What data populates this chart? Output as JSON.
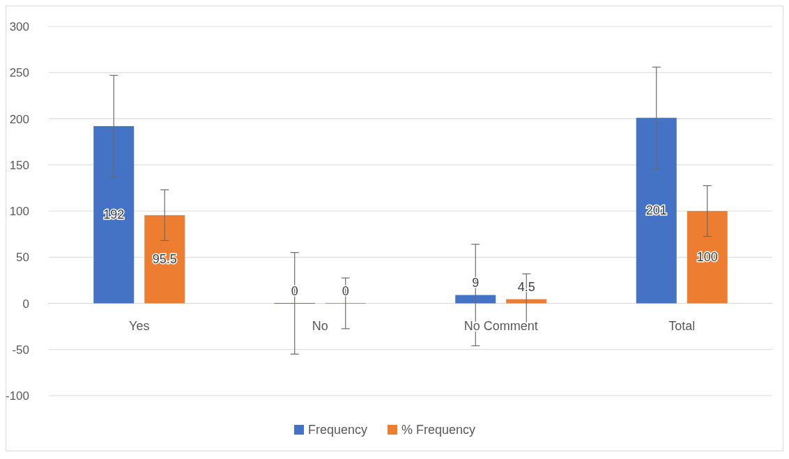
{
  "chart_data": {
    "type": "bar",
    "categories": [
      "Yes",
      "No",
      "No Comment",
      "Total"
    ],
    "series": [
      {
        "name": "Frequency",
        "color": "#4472c4",
        "values": [
          192,
          0,
          9,
          201
        ],
        "errors": [
          55,
          55,
          55,
          55
        ]
      },
      {
        "name": "% Frequency",
        "color": "#ed7d31",
        "values": [
          95.5,
          0,
          4.5,
          100
        ],
        "errors": [
          27.5,
          27.5,
          27.5,
          27.5
        ]
      }
    ],
    "ylim": [
      -100,
      300
    ],
    "yticks": [
      -100,
      -50,
      0,
      50,
      100,
      150,
      200,
      250,
      300
    ],
    "grid": "y",
    "legend": "bottom",
    "data_labels": true
  }
}
